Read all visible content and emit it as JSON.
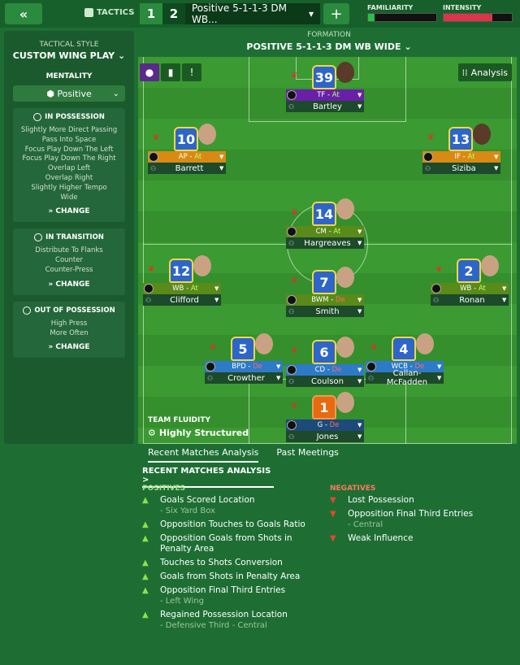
{
  "topbar": {
    "back_icon": "«",
    "tactics_label": "TACTICS",
    "tabs": [
      "1",
      "2"
    ],
    "tactic_name": "Positive 5-1-1-3 DM WB...",
    "add": "+",
    "familiarity_label": "FAMILIARITY",
    "familiarity_level": 0.1,
    "familiarity_color": "#2bbf4a",
    "intensity_label": "INTENSITY",
    "intensity_level": 0.72,
    "intensity_color": "#d9364a"
  },
  "left": {
    "style_label": "TACTICAL STYLE",
    "style_value": "CUSTOM WING PLAY",
    "mentality_label": "MENTALITY",
    "mentality_value": "Positive",
    "in_possession": {
      "title": "IN POSSESSION",
      "items": [
        "Slightly More Direct Passing",
        "Pass Into Space",
        "Focus Play Down The Left",
        "Focus Play Down The Right",
        "Overlap Left",
        "Overlap Right",
        "Slightly Higher Tempo",
        "Wide"
      ],
      "change": "CHANGE"
    },
    "in_transition": {
      "title": "IN TRANSITION",
      "items": [
        "Distribute To Flanks",
        "Counter",
        "Counter-Press"
      ],
      "change": "CHANGE"
    },
    "out_possession": {
      "title": "OUT OF POSSESSION",
      "items": [
        "High Press",
        "More Often"
      ],
      "change": "CHANGE"
    }
  },
  "formation": {
    "label": "FORMATION",
    "name": "POSITIVE 5-1-1-3 DM WB WIDE"
  },
  "pitch": {
    "analysis": "Analysis",
    "fluidity_label": "TEAM FLUIDITY",
    "fluidity_value": "Highly Structured",
    "players": [
      {
        "num": "39",
        "role": "TF",
        "duty": "At",
        "name": "Bartley",
        "role_color": "#6a1fa8",
        "gk": false
      },
      {
        "num": "10",
        "role": "AP",
        "duty": "At",
        "name": "Barrett",
        "role_color": "#d98a14",
        "gk": false
      },
      {
        "num": "13",
        "role": "IF",
        "duty": "At",
        "name": "Siziba",
        "role_color": "#d98a14",
        "gk": false
      },
      {
        "num": "14",
        "role": "CM",
        "duty": "At",
        "name": "Hargreaves",
        "role_color": "#5a8a1a",
        "gk": false
      },
      {
        "num": "12",
        "role": "WB",
        "duty": "At",
        "name": "Clifford",
        "role_color": "#5a8a1a",
        "gk": false
      },
      {
        "num": "7",
        "role": "BWM",
        "duty": "De",
        "name": "Smith",
        "role_color": "#5a8a1a",
        "gk": false
      },
      {
        "num": "2",
        "role": "WB",
        "duty": "At",
        "name": "Ronan",
        "role_color": "#5a8a1a",
        "gk": false
      },
      {
        "num": "5",
        "role": "BPD",
        "duty": "De",
        "name": "Crowther",
        "role_color": "#2d7ac8",
        "gk": false
      },
      {
        "num": "6",
        "role": "CD",
        "duty": "De",
        "name": "Coulson",
        "role_color": "#2d7ac8",
        "gk": false
      },
      {
        "num": "4",
        "role": "WCB",
        "duty": "De",
        "name": "Callan-McFadden",
        "role_color": "#2d7ac8",
        "gk": false
      },
      {
        "num": "1",
        "role": "G",
        "duty": "De",
        "name": "Jones",
        "role_color": "#1c4a7a",
        "gk": true
      }
    ]
  },
  "bottom": {
    "tabs": [
      "Recent Matches Analysis",
      "Past Meetings"
    ],
    "subtitle": "RECENT MATCHES ANALYSIS >",
    "positives_label": "POSITIVES",
    "negatives_label": "NEGATIVES",
    "positives": [
      {
        "t": "Goals Scored Location",
        "s": "- Six Yard Box"
      },
      {
        "t": "Opposition Touches to Goals Ratio",
        "s": ""
      },
      {
        "t": "Opposition Goals from Shots in Penalty Area",
        "s": ""
      },
      {
        "t": "Touches to Shots Conversion",
        "s": ""
      },
      {
        "t": "Goals from Shots in Penalty Area",
        "s": ""
      },
      {
        "t": "Opposition Final Third Entries",
        "s": "- Left Wing"
      },
      {
        "t": "Regained Possession Location",
        "s": "- Defensive Third - Central"
      }
    ],
    "negatives": [
      {
        "t": "Lost Possession",
        "s": ""
      },
      {
        "t": "Opposition Final Third Entries",
        "s": "- Central"
      },
      {
        "t": "Weak Influence",
        "s": ""
      }
    ]
  }
}
